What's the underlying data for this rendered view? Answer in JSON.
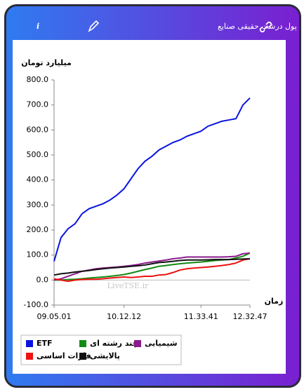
{
  "header": {
    "info": "i"
  },
  "chart_data": {
    "type": "line",
    "title": "پول درشت حقیقی صنایع",
    "y_label": "میلیارد تومان",
    "x_label": "زمان",
    "annotation": "LiveTSE.ir",
    "x": [
      0,
      1,
      2,
      3,
      4,
      5,
      6,
      7,
      8,
      9,
      10,
      11,
      12,
      13,
      14,
      15,
      16,
      17,
      18,
      19,
      20,
      21,
      22,
      23,
      24,
      25,
      26,
      27,
      28
    ],
    "xlim": [
      0,
      28
    ],
    "xticks": [
      {
        "value": 0,
        "label": "09.05.01"
      },
      {
        "value": 10,
        "label": "10.12.12"
      },
      {
        "value": 21,
        "label": "11.33.41"
      },
      {
        "value": 28,
        "label": "12.32.47"
      }
    ],
    "ylim": [
      -100,
      800
    ],
    "yticks": [
      {
        "value": 800,
        "label": "800.0"
      },
      {
        "value": 700,
        "label": "700.0"
      },
      {
        "value": 600,
        "label": "600.0"
      },
      {
        "value": 500,
        "label": "500.0"
      },
      {
        "value": 400,
        "label": "400.0"
      },
      {
        "value": 300,
        "label": "300.0"
      },
      {
        "value": 200,
        "label": "200.0"
      },
      {
        "value": 100,
        "label": "100.0"
      },
      {
        "value": 0,
        "label": "0.0"
      },
      {
        "value": -100,
        "label": "-100.0"
      }
    ],
    "series": [
      {
        "name": "ETF",
        "color": "#0a14e0",
        "values": [
          75,
          170,
          205,
          225,
          265,
          285,
          295,
          305,
          320,
          340,
          365,
          405,
          445,
          475,
          495,
          520,
          535,
          550,
          560,
          575,
          585,
          595,
          615,
          625,
          635,
          640,
          645,
          700,
          728
        ]
      },
      {
        "name": "چند رشته ای",
        "color": "#138a13",
        "values": [
          0,
          0,
          2,
          3,
          5,
          8,
          10,
          12,
          15,
          18,
          22,
          28,
          35,
          42,
          48,
          55,
          58,
          62,
          65,
          68,
          70,
          72,
          75,
          78,
          80,
          82,
          88,
          95,
          108
        ]
      },
      {
        "name": "شیمیایی",
        "color": "#8b1a8b",
        "values": [
          0,
          5,
          15,
          25,
          35,
          40,
          45,
          48,
          50,
          52,
          55,
          58,
          62,
          68,
          72,
          76,
          80,
          85,
          88,
          92,
          92,
          92,
          92,
          92,
          92,
          93,
          95,
          105,
          108
        ]
      },
      {
        "name": "فلزات اساسی",
        "color": "#f01010",
        "values": [
          5,
          0,
          -5,
          0,
          2,
          3,
          3,
          5,
          8,
          10,
          12,
          10,
          12,
          15,
          15,
          20,
          22,
          30,
          40,
          45,
          48,
          50,
          52,
          55,
          58,
          62,
          68,
          80,
          85
        ]
      },
      {
        "name": "پالایشی",
        "color": "#111111",
        "values": [
          20,
          25,
          28,
          32,
          35,
          38,
          42,
          45,
          48,
          50,
          52,
          55,
          57,
          60,
          65,
          70,
          72,
          75,
          78,
          80,
          80,
          80,
          81,
          82,
          82,
          82,
          83,
          84,
          85
        ]
      }
    ]
  }
}
